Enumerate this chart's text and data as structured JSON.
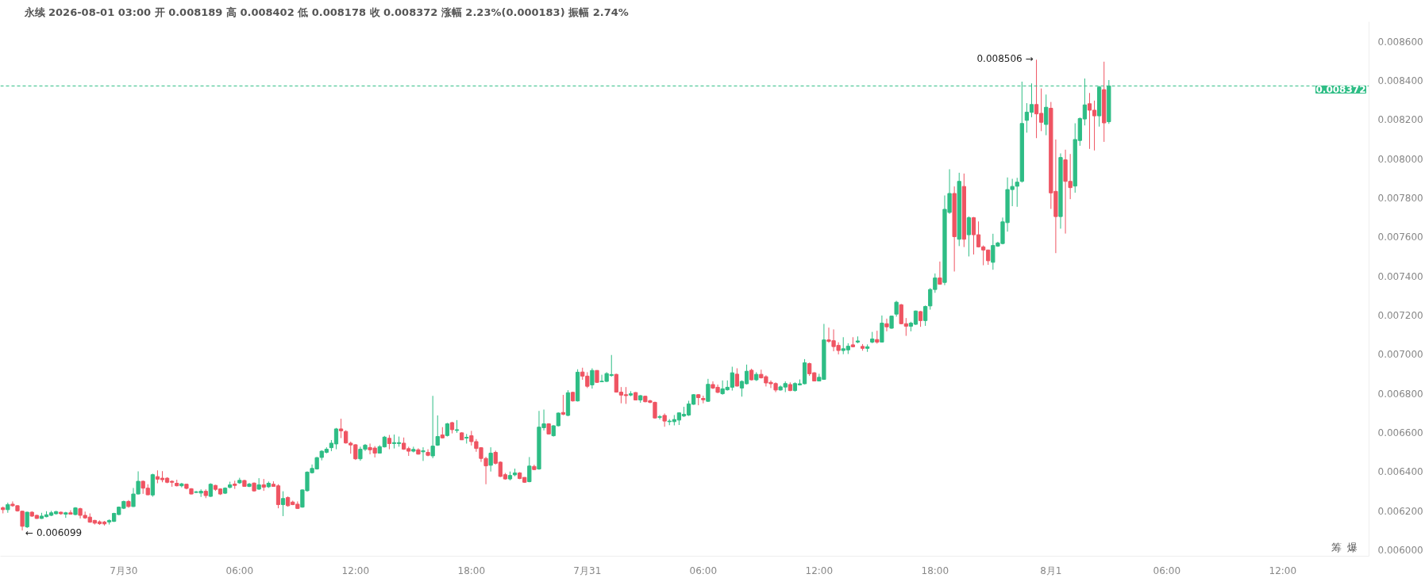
{
  "chart_data": {
    "type": "candlestick",
    "title": "永续 2026-08-01 03:00 开 0.008189 高 0.008402 低 0.008178 收 0.008372 涨幅 2.23%(0.000183) 振幅 2.74%",
    "x": [
      "2026-07-29T17:45",
      "2026-07-29T18:00",
      "2026-07-29T18:15",
      "2026-07-29T18:30",
      "2026-07-29T18:45",
      "2026-07-29T19:00",
      "2026-07-29T19:15",
      "2026-07-29T19:30",
      "2026-07-29T19:45",
      "2026-07-29T20:00",
      "2026-07-29T20:15",
      "2026-07-29T20:30",
      "2026-07-29T20:45",
      "2026-07-29T21:00",
      "2026-07-29T21:15",
      "2026-07-29T21:30",
      "2026-07-29T21:45",
      "2026-07-29T22:00",
      "2026-07-29T22:15",
      "2026-07-29T22:30",
      "2026-07-29T22:45",
      "2026-07-29T23:00",
      "2026-07-29T23:15",
      "2026-07-29T23:30",
      "2026-07-29T23:45",
      "2026-07-30T00:00",
      "2026-07-30T00:15",
      "2026-07-30T00:30",
      "2026-07-30T00:45",
      "2026-07-30T01:00",
      "2026-07-30T01:15",
      "2026-07-30T01:30",
      "2026-07-30T01:45",
      "2026-07-30T02:00",
      "2026-07-30T02:15",
      "2026-07-30T02:30",
      "2026-07-30T02:45",
      "2026-07-30T03:00",
      "2026-07-30T03:15",
      "2026-07-30T03:30",
      "2026-07-30T03:45",
      "2026-07-30T04:00",
      "2026-07-30T04:15",
      "2026-07-30T04:30",
      "2026-07-30T04:45",
      "2026-07-30T05:00",
      "2026-07-30T05:15",
      "2026-07-30T05:30",
      "2026-07-30T05:45",
      "2026-07-30T06:00",
      "2026-07-30T06:15",
      "2026-07-30T06:30",
      "2026-07-30T06:45",
      "2026-07-30T07:00",
      "2026-07-30T07:15",
      "2026-07-30T07:30",
      "2026-07-30T07:45",
      "2026-07-30T08:00",
      "2026-07-30T08:15",
      "2026-07-30T08:30",
      "2026-07-30T08:45",
      "2026-07-30T09:00",
      "2026-07-30T09:15",
      "2026-07-30T09:30",
      "2026-07-30T09:45",
      "2026-07-30T10:00",
      "2026-07-30T10:15",
      "2026-07-30T10:30",
      "2026-07-30T10:45",
      "2026-07-30T11:00",
      "2026-07-30T11:15",
      "2026-07-30T11:30",
      "2026-07-30T11:45",
      "2026-07-30T12:00",
      "2026-07-30T12:15",
      "2026-07-30T12:30",
      "2026-07-30T12:45",
      "2026-07-30T13:00",
      "2026-07-30T13:15",
      "2026-07-30T13:30",
      "2026-07-30T13:45",
      "2026-07-30T14:00",
      "2026-07-30T14:15",
      "2026-07-30T14:30",
      "2026-07-30T14:45",
      "2026-07-30T15:00",
      "2026-07-30T15:15",
      "2026-07-30T15:30",
      "2026-07-30T15:45",
      "2026-07-30T16:00",
      "2026-07-30T16:15",
      "2026-07-30T16:30",
      "2026-07-30T16:45",
      "2026-07-30T17:00",
      "2026-07-30T17:15",
      "2026-07-30T17:30",
      "2026-07-30T17:45",
      "2026-07-30T18:00",
      "2026-07-30T18:15",
      "2026-07-30T18:30",
      "2026-07-30T18:45",
      "2026-07-30T19:00",
      "2026-07-30T19:15",
      "2026-07-30T19:30",
      "2026-07-30T19:45",
      "2026-07-30T20:00",
      "2026-07-30T20:15",
      "2026-07-30T20:30",
      "2026-07-30T20:45",
      "2026-07-30T21:00",
      "2026-07-30T21:15",
      "2026-07-30T21:30",
      "2026-07-30T21:45",
      "2026-07-30T22:00",
      "2026-07-30T22:15",
      "2026-07-30T22:30",
      "2026-07-30T22:45",
      "2026-07-30T23:00",
      "2026-07-30T23:15",
      "2026-07-30T23:30",
      "2026-07-30T23:45",
      "2026-07-31T00:00",
      "2026-07-31T00:15",
      "2026-07-31T00:30",
      "2026-07-31T00:45",
      "2026-07-31T01:00",
      "2026-07-31T01:15",
      "2026-07-31T01:30",
      "2026-07-31T01:45",
      "2026-07-31T02:00",
      "2026-07-31T02:15",
      "2026-07-31T02:30",
      "2026-07-31T02:45",
      "2026-07-31T03:00",
      "2026-07-31T03:15",
      "2026-07-31T03:30",
      "2026-07-31T03:45",
      "2026-07-31T04:00",
      "2026-07-31T04:15",
      "2026-07-31T04:30",
      "2026-07-31T04:45",
      "2026-07-31T05:00",
      "2026-07-31T05:15",
      "2026-07-31T05:30",
      "2026-07-31T05:45",
      "2026-07-31T06:00",
      "2026-07-31T06:15",
      "2026-07-31T06:30",
      "2026-07-31T06:45",
      "2026-07-31T07:00",
      "2026-07-31T07:15",
      "2026-07-31T07:30",
      "2026-07-31T07:45",
      "2026-07-31T08:00",
      "2026-07-31T08:15",
      "2026-07-31T08:30",
      "2026-07-31T08:45",
      "2026-07-31T09:00",
      "2026-07-31T09:15",
      "2026-07-31T09:30",
      "2026-07-31T09:45",
      "2026-07-31T10:00",
      "2026-07-31T10:15",
      "2026-07-31T10:30",
      "2026-07-31T10:45",
      "2026-07-31T11:00",
      "2026-07-31T11:15",
      "2026-07-31T11:30",
      "2026-07-31T11:45",
      "2026-07-31T12:00",
      "2026-07-31T12:15",
      "2026-07-31T12:30",
      "2026-07-31T12:45",
      "2026-07-31T13:00",
      "2026-07-31T13:15",
      "2026-07-31T13:30",
      "2026-07-31T13:45",
      "2026-07-31T14:00",
      "2026-07-31T14:15",
      "2026-07-31T14:30",
      "2026-07-31T14:45",
      "2026-07-31T15:00",
      "2026-07-31T15:15",
      "2026-07-31T15:30",
      "2026-07-31T15:45",
      "2026-07-31T16:00",
      "2026-07-31T16:15",
      "2026-07-31T16:30",
      "2026-07-31T16:45",
      "2026-07-31T17:00",
      "2026-07-31T17:15",
      "2026-07-31T17:30",
      "2026-07-31T17:45",
      "2026-07-31T18:00",
      "2026-07-31T18:15",
      "2026-07-31T18:30",
      "2026-07-31T18:45",
      "2026-07-31T19:00",
      "2026-07-31T19:15",
      "2026-07-31T19:30",
      "2026-07-31T19:45",
      "2026-07-31T20:00",
      "2026-07-31T20:15",
      "2026-07-31T20:30",
      "2026-07-31T20:45",
      "2026-07-31T21:00",
      "2026-07-31T21:15",
      "2026-07-31T21:30",
      "2026-07-31T21:45",
      "2026-07-31T22:00",
      "2026-07-31T22:15",
      "2026-07-31T22:30",
      "2026-07-31T22:45",
      "2026-07-31T23:00",
      "2026-07-31T23:15",
      "2026-07-31T23:30",
      "2026-07-31T23:45",
      "2026-08-01T00:00",
      "2026-08-01T00:15",
      "2026-08-01T00:30",
      "2026-08-01T00:45",
      "2026-08-01T01:00",
      "2026-08-01T01:15",
      "2026-08-01T01:30",
      "2026-08-01T01:45",
      "2026-08-01T02:00",
      "2026-08-01T02:15",
      "2026-08-01T02:30",
      "2026-08-01T02:45",
      "2026-08-01T03:00"
    ],
    "ohlc": [
      [
        0.006215,
        0.006221,
        0.006186,
        0.006205
      ],
      [
        0.006205,
        0.006241,
        0.006189,
        0.006231
      ],
      [
        0.006233,
        0.006247,
        0.00622,
        0.006225
      ],
      [
        0.006225,
        0.006228,
        0.006195,
        0.006199
      ],
      [
        0.006197,
        0.006199,
        0.006099,
        0.00612
      ],
      [
        0.006117,
        0.006194,
        0.006111,
        0.006192
      ],
      [
        0.006192,
        0.006197,
        0.006168,
        0.006172
      ],
      [
        0.006176,
        0.006179,
        0.006158,
        0.00616
      ],
      [
        0.00616,
        0.006189,
        0.006158,
        0.006172
      ],
      [
        0.006169,
        0.006197,
        0.006166,
        0.006179
      ],
      [
        0.006176,
        0.006199,
        0.006172,
        0.006189
      ],
      [
        0.006184,
        0.006199,
        0.00618,
        0.006195
      ],
      [
        0.006192,
        0.006195,
        0.006179,
        0.006184
      ],
      [
        0.006182,
        0.006194,
        0.006163,
        0.006189
      ],
      [
        0.006189,
        0.006202,
        0.00618,
        0.006182
      ],
      [
        0.00618,
        0.006218,
        0.006176,
        0.006214
      ],
      [
        0.00621,
        0.006215,
        0.00616,
        0.006176
      ],
      [
        0.006176,
        0.006195,
        0.006158,
        0.006163
      ],
      [
        0.006167,
        0.006186,
        0.006138,
        0.006141
      ],
      [
        0.00615,
        0.006153,
        0.006129,
        0.006136
      ],
      [
        0.006143,
        0.00615,
        0.006127,
        0.006133
      ],
      [
        0.006142,
        0.006147,
        0.006124,
        0.006132
      ],
      [
        0.006142,
        0.006155,
        0.006129,
        0.00615
      ],
      [
        0.006145,
        0.006189,
        0.006142,
        0.006186
      ],
      [
        0.00618,
        0.006221,
        0.006177,
        0.006218
      ],
      [
        0.006212,
        0.006251,
        0.006208,
        0.006247
      ],
      [
        0.006247,
        0.006254,
        0.006215,
        0.006221
      ],
      [
        0.006221,
        0.006316,
        0.006219,
        0.006285
      ],
      [
        0.006285,
        0.006401,
        0.006283,
        0.00635
      ],
      [
        0.00635,
        0.006354,
        0.006286,
        0.006315
      ],
      [
        0.006315,
        0.006335,
        0.006279,
        0.006281
      ],
      [
        0.00628,
        0.006389,
        0.006271,
        0.006384
      ],
      [
        0.006374,
        0.006406,
        0.00634,
        0.006361
      ],
      [
        0.006366,
        0.006402,
        0.006345,
        0.006358
      ],
      [
        0.006366,
        0.006371,
        0.00634,
        0.006345
      ],
      [
        0.00635,
        0.006355,
        0.006322,
        0.006345
      ],
      [
        0.00634,
        0.006358,
        0.006324,
        0.006327
      ],
      [
        0.006327,
        0.006342,
        0.006319,
        0.006337
      ],
      [
        0.006335,
        0.006337,
        0.006309,
        0.006314
      ],
      [
        0.006312,
        0.006315,
        0.006283,
        0.006285
      ],
      [
        0.006293,
        0.006301,
        0.00629,
        0.006296
      ],
      [
        0.00629,
        0.006309,
        0.00627,
        0.006299
      ],
      [
        0.006299,
        0.006309,
        0.006264,
        0.006277
      ],
      [
        0.006273,
        0.00634,
        0.00627,
        0.006335
      ],
      [
        0.006329,
        0.006332,
        0.006301,
        0.006309
      ],
      [
        0.006311,
        0.006314,
        0.00628,
        0.006285
      ],
      [
        0.006289,
        0.006319,
        0.006285,
        0.006315
      ],
      [
        0.006319,
        0.006348,
        0.006314,
        0.006332
      ],
      [
        0.006336,
        0.006353,
        0.006311,
        0.006329
      ],
      [
        0.006342,
        0.006368,
        0.006337,
        0.006355
      ],
      [
        0.006354,
        0.006358,
        0.006322,
        0.006324
      ],
      [
        0.006324,
        0.006342,
        0.00632,
        0.006336
      ],
      [
        0.006341,
        0.006344,
        0.006298,
        0.006301
      ],
      [
        0.00631,
        0.006366,
        0.006306,
        0.006332
      ],
      [
        0.006332,
        0.006362,
        0.006301,
        0.00632
      ],
      [
        0.006322,
        0.006349,
        0.006316,
        0.00634
      ],
      [
        0.006335,
        0.00635,
        0.006322,
        0.006324
      ],
      [
        0.006327,
        0.006335,
        0.006212,
        0.006231
      ],
      [
        0.006231,
        0.006299,
        0.006172,
        0.006262
      ],
      [
        0.006267,
        0.006273,
        0.00622,
        0.006225
      ],
      [
        0.006244,
        0.006251,
        0.006228,
        0.006231
      ],
      [
        0.006233,
        0.006247,
        0.00621,
        0.006211
      ],
      [
        0.006218,
        0.006309,
        0.006215,
        0.006306
      ],
      [
        0.006302,
        0.006401,
        0.006297,
        0.006397
      ],
      [
        0.006394,
        0.006436,
        0.00639,
        0.006416
      ],
      [
        0.006413,
        0.006475,
        0.00641,
        0.006471
      ],
      [
        0.006472,
        0.006509,
        0.006457,
        0.006504
      ],
      [
        0.006498,
        0.006524,
        0.006493,
        0.006514
      ],
      [
        0.006522,
        0.006561,
        0.006504,
        0.006545
      ],
      [
        0.006541,
        0.006623,
        0.006514,
        0.006618
      ],
      [
        0.006618,
        0.00667,
        0.006571,
        0.006608
      ],
      [
        0.006605,
        0.006611,
        0.006543,
        0.006546
      ],
      [
        0.006545,
        0.006553,
        0.006491,
        0.006536
      ],
      [
        0.006537,
        0.00654,
        0.006459,
        0.006465
      ],
      [
        0.006465,
        0.006527,
        0.006455,
        0.006514
      ],
      [
        0.006514,
        0.006541,
        0.006505,
        0.006535
      ],
      [
        0.006523,
        0.006543,
        0.006488,
        0.006511
      ],
      [
        0.00652,
        0.00653,
        0.006472,
        0.006494
      ],
      [
        0.006494,
        0.006535,
        0.006493,
        0.006527
      ],
      [
        0.006526,
        0.006582,
        0.006523,
        0.006576
      ],
      [
        0.00657,
        0.006587,
        0.006514,
        0.006543
      ],
      [
        0.006543,
        0.006589,
        0.006518,
        0.006548
      ],
      [
        0.006543,
        0.006579,
        0.006527,
        0.006548
      ],
      [
        0.006545,
        0.006574,
        0.006511,
        0.006514
      ],
      [
        0.006517,
        0.006527,
        0.00648,
        0.006504
      ],
      [
        0.006504,
        0.006527,
        0.006498,
        0.006513
      ],
      [
        0.006511,
        0.006519,
        0.006487,
        0.006489
      ],
      [
        0.006501,
        0.006524,
        0.006454,
        0.006506
      ],
      [
        0.006498,
        0.006514,
        0.006478,
        0.006483
      ],
      [
        0.00648,
        0.006787,
        0.006468,
        0.00653
      ],
      [
        0.006535,
        0.006687,
        0.006531,
        0.006579
      ],
      [
        0.006587,
        0.006627,
        0.006569,
        0.006572
      ],
      [
        0.006584,
        0.006649,
        0.006579,
        0.006644
      ],
      [
        0.00665,
        0.006654,
        0.006595,
        0.006614
      ],
      [
        0.00661,
        0.006663,
        0.006598,
        0.006614
      ],
      [
        0.006598,
        0.006601,
        0.006561,
        0.006562
      ],
      [
        0.006571,
        0.006592,
        0.006543,
        0.006575
      ],
      [
        0.006583,
        0.006608,
        0.006533,
        0.006553
      ],
      [
        0.006553,
        0.006566,
        0.006501,
        0.006518
      ],
      [
        0.006522,
        0.006524,
        0.006449,
        0.006467
      ],
      [
        0.006467,
        0.006475,
        0.006335,
        0.006429
      ],
      [
        0.006432,
        0.006524,
        0.0064,
        0.006494
      ],
      [
        0.006498,
        0.006507,
        0.006436,
        0.006442
      ],
      [
        0.006448,
        0.006452,
        0.006372,
        0.006375
      ],
      [
        0.006384,
        0.006393,
        0.006358,
        0.006362
      ],
      [
        0.006362,
        0.0064,
        0.006355,
        0.00638
      ],
      [
        0.006383,
        0.006415,
        0.006376,
        0.006393
      ],
      [
        0.006393,
        0.006397,
        0.006361,
        0.006364
      ],
      [
        0.00637,
        0.006371,
        0.006342,
        0.006345
      ],
      [
        0.006348,
        0.006474,
        0.006345,
        0.006428
      ],
      [
        0.006426,
        0.006435,
        0.006407,
        0.00641
      ],
      [
        0.006413,
        0.00671,
        0.006409,
        0.006627
      ],
      [
        0.006624,
        0.006717,
        0.00661,
        0.006644
      ],
      [
        0.006644,
        0.006647,
        0.006589,
        0.006592
      ],
      [
        0.006583,
        0.006637,
        0.006579,
        0.006634
      ],
      [
        0.006634,
        0.006702,
        0.006631,
        0.006699
      ],
      [
        0.006702,
        0.006792,
        0.006688,
        0.006693
      ],
      [
        0.006687,
        0.006816,
        0.006683,
        0.006803
      ],
      [
        0.006805,
        0.006808,
        0.006758,
        0.006761
      ],
      [
        0.006761,
        0.006923,
        0.006758,
        0.006908
      ],
      [
        0.006909,
        0.006931,
        0.006869,
        0.006888
      ],
      [
        0.006888,
        0.006908,
        0.006827,
        0.006836
      ],
      [
        0.006843,
        0.006928,
        0.006824,
        0.006917
      ],
      [
        0.006917,
        0.006918,
        0.006853,
        0.006856
      ],
      [
        0.006859,
        0.006895,
        0.006857,
        0.006862
      ],
      [
        0.006861,
        0.006908,
        0.006858,
        0.006901
      ],
      [
        0.006891,
        0.006996,
        0.006885,
        0.006896
      ],
      [
        0.006897,
        0.0069,
        0.006804,
        0.006806
      ],
      [
        0.006806,
        0.006832,
        0.006749,
        0.006791
      ],
      [
        0.006793,
        0.006832,
        0.006746,
        0.006788
      ],
      [
        0.006791,
        0.006811,
        0.006785,
        0.006798
      ],
      [
        0.006804,
        0.006806,
        0.006765,
        0.006766
      ],
      [
        0.006766,
        0.006791,
        0.006752,
        0.006788
      ],
      [
        0.006785,
        0.006788,
        0.006754,
        0.006757
      ],
      [
        0.006762,
        0.006767,
        0.006749,
        0.006754
      ],
      [
        0.006754,
        0.006757,
        0.006671,
        0.006674
      ],
      [
        0.006677,
        0.006689,
        0.006666,
        0.006681
      ],
      [
        0.006687,
        0.006697,
        0.006629,
        0.006658
      ],
      [
        0.006655,
        0.006668,
        0.006637,
        0.006658
      ],
      [
        0.006655,
        0.006689,
        0.006636,
        0.006666
      ],
      [
        0.006663,
        0.006702,
        0.006638,
        0.0067
      ],
      [
        0.006684,
        0.006731,
        0.006679,
        0.006693
      ],
      [
        0.006689,
        0.006762,
        0.006684,
        0.006746
      ],
      [
        0.006744,
        0.006796,
        0.006741,
        0.006793
      ],
      [
        0.006793,
        0.006796,
        0.006739,
        0.006778
      ],
      [
        0.006774,
        0.006788,
        0.006749,
        0.006767
      ],
      [
        0.006759,
        0.006874,
        0.006757,
        0.006846
      ],
      [
        0.006845,
        0.006861,
        0.006822,
        0.006827
      ],
      [
        0.006831,
        0.006845,
        0.006801,
        0.006805
      ],
      [
        0.006798,
        0.006866,
        0.006793,
        0.006823
      ],
      [
        0.006818,
        0.006866,
        0.006814,
        0.006831
      ],
      [
        0.006831,
        0.006936,
        0.006814,
        0.006905
      ],
      [
        0.006898,
        0.006928,
        0.006835,
        0.006837
      ],
      [
        0.006827,
        0.006866,
        0.006783,
        0.006861
      ],
      [
        0.006849,
        0.006947,
        0.006845,
        0.006913
      ],
      [
        0.006918,
        0.006926,
        0.006866,
        0.006869
      ],
      [
        0.006869,
        0.006908,
        0.006863,
        0.006897
      ],
      [
        0.006897,
        0.006921,
        0.006876,
        0.006879
      ],
      [
        0.006885,
        0.006892,
        0.006835,
        0.006853
      ],
      [
        0.006856,
        0.006866,
        0.006827,
        0.006849
      ],
      [
        0.00685,
        0.006856,
        0.006806,
        0.006817
      ],
      [
        0.006817,
        0.00684,
        0.006814,
        0.006833
      ],
      [
        0.006832,
        0.006861,
        0.006806,
        0.00685
      ],
      [
        0.006845,
        0.006856,
        0.006811,
        0.006814
      ],
      [
        0.006814,
        0.006856,
        0.006809,
        0.00685
      ],
      [
        0.006843,
        0.006871,
        0.00684,
        0.006849
      ],
      [
        0.006849,
        0.006975,
        0.006846,
        0.006956
      ],
      [
        0.006952,
        0.006957,
        0.006889,
        0.0069
      ],
      [
        0.006905,
        0.006908,
        0.006861,
        0.006863
      ],
      [
        0.006863,
        0.0069,
        0.006861,
        0.006882
      ],
      [
        0.006871,
        0.007155,
        0.006869,
        0.007073
      ],
      [
        0.007073,
        0.007136,
        0.007058,
        0.007066
      ],
      [
        0.007069,
        0.007127,
        0.007015,
        0.007039
      ],
      [
        0.007045,
        0.007061,
        0.006999,
        0.007019
      ],
      [
        0.007019,
        0.007087,
        0.007,
        0.007028
      ],
      [
        0.007022,
        0.007056,
        0.007001,
        0.007041
      ],
      [
        0.007048,
        0.007087,
        0.007035,
        0.007038
      ],
      [
        0.007062,
        0.007091,
        0.007056,
        0.007068
      ],
      [
        0.00704,
        0.007052,
        0.007018,
        0.00703
      ],
      [
        0.00703,
        0.00705,
        0.007012,
        0.007038
      ],
      [
        0.007062,
        0.007114,
        0.007056,
        0.007078
      ],
      [
        0.007075,
        0.00712,
        0.007054,
        0.007062
      ],
      [
        0.007062,
        0.007198,
        0.00706,
        0.007159
      ],
      [
        0.007156,
        0.007182,
        0.007117,
        0.00714
      ],
      [
        0.007133,
        0.007197,
        0.00713,
        0.007195
      ],
      [
        0.007205,
        0.007273,
        0.007192,
        0.007266
      ],
      [
        0.007253,
        0.007257,
        0.007153,
        0.007156
      ],
      [
        0.007156,
        0.007185,
        0.007094,
        0.007143
      ],
      [
        0.007143,
        0.007166,
        0.007117,
        0.007159
      ],
      [
        0.007153,
        0.007223,
        0.00715,
        0.007221
      ],
      [
        0.007218,
        0.007221,
        0.00714,
        0.007172
      ],
      [
        0.007172,
        0.007249,
        0.007145,
        0.007244
      ],
      [
        0.007247,
        0.007338,
        0.007228,
        0.007331
      ],
      [
        0.007331,
        0.007413,
        0.007314,
        0.00739
      ],
      [
        0.00739,
        0.007474,
        0.007356,
        0.007358
      ],
      [
        0.007367,
        0.007812,
        0.007353,
        0.007741
      ],
      [
        0.007725,
        0.007946,
        0.007718,
        0.007822
      ],
      [
        0.007822,
        0.007858,
        0.007423,
        0.007601
      ],
      [
        0.007588,
        0.007928,
        0.007553,
        0.007884
      ],
      [
        0.007858,
        0.007924,
        0.007548,
        0.007588
      ],
      [
        0.007611,
        0.007705,
        0.0075,
        0.007698
      ],
      [
        0.007698,
        0.007702,
        0.00751,
        0.007611
      ],
      [
        0.007611,
        0.007679,
        0.007546,
        0.007549
      ],
      [
        0.007549,
        0.007556,
        0.007455,
        0.007533
      ],
      [
        0.007533,
        0.007535,
        0.007457,
        0.007478
      ],
      [
        0.00747,
        0.007616,
        0.007432,
        0.007556
      ],
      [
        0.007553,
        0.007575,
        0.007549,
        0.007569
      ],
      [
        0.007566,
        0.007699,
        0.007562,
        0.007677
      ],
      [
        0.007673,
        0.007904,
        0.007627,
        0.007842
      ],
      [
        0.007842,
        0.007897,
        0.007757,
        0.007858
      ],
      [
        0.007859,
        0.007902,
        0.007754,
        0.00788
      ],
      [
        0.007884,
        0.008394,
        0.007878,
        0.00818
      ],
      [
        0.008196,
        0.008284,
        0.008133,
        0.008238
      ],
      [
        0.008237,
        0.008385,
        0.008212,
        0.008277
      ],
      [
        0.008277,
        0.008506,
        0.008105,
        0.008229
      ],
      [
        0.008232,
        0.008359,
        0.008141,
        0.008186
      ],
      [
        0.008175,
        0.008328,
        0.00812,
        0.008263
      ],
      [
        0.008258,
        0.00829,
        0.007743,
        0.007825
      ],
      [
        0.007833,
        0.008098,
        0.007517,
        0.007704
      ],
      [
        0.007704,
        0.008027,
        0.007642,
        0.008006
      ],
      [
        0.007994,
        0.008046,
        0.007617,
        0.007884
      ],
      [
        0.007884,
        0.008024,
        0.007793,
        0.007852
      ],
      [
        0.00786,
        0.008181,
        0.007826,
        0.008098
      ],
      [
        0.008093,
        0.008211,
        0.008066,
        0.008205
      ],
      [
        0.008203,
        0.00841,
        0.00817,
        0.008275
      ],
      [
        0.008281,
        0.008336,
        0.00805,
        0.008248
      ],
      [
        0.008248,
        0.008297,
        0.008042,
        0.008219
      ],
      [
        0.008219,
        0.008372,
        0.008164,
        0.008366
      ],
      [
        0.008353,
        0.008496,
        0.008086,
        0.008183
      ],
      [
        0.008189,
        0.008402,
        0.008178,
        0.008372
      ]
    ],
    "xlim": [
      "2026-07-29T17:37",
      "2026-08-01T16:28"
    ],
    "xticks": [
      {
        "value": "2026-07-30T00:00",
        "label": "7月30"
      },
      {
        "value": "2026-07-30T06:00",
        "label": "06:00"
      },
      {
        "value": "2026-07-30T12:00",
        "label": "12:00"
      },
      {
        "value": "2026-07-30T18:00",
        "label": "18:00"
      },
      {
        "value": "2026-07-31T00:00",
        "label": "7月31"
      },
      {
        "value": "2026-07-31T06:00",
        "label": "06:00"
      },
      {
        "value": "2026-07-31T12:00",
        "label": "12:00"
      },
      {
        "value": "2026-07-31T18:00",
        "label": "18:00"
      },
      {
        "value": "2026-08-01T00:00",
        "label": "8月1"
      },
      {
        "value": "2026-08-01T06:00",
        "label": "06:00"
      },
      {
        "value": "2026-08-01T12:00",
        "label": "12:00"
      }
    ],
    "ylim": [
      0.005967,
      0.0087
    ],
    "yticks": [
      {
        "value": 0.006,
        "label": "0.006000"
      },
      {
        "value": 0.0062,
        "label": "0.006200"
      },
      {
        "value": 0.0064,
        "label": "0.006400"
      },
      {
        "value": 0.0066,
        "label": "0.006600"
      },
      {
        "value": 0.0068,
        "label": "0.006800"
      },
      {
        "value": 0.007,
        "label": "0.007000"
      },
      {
        "value": 0.0072,
        "label": "0.007200"
      },
      {
        "value": 0.0074,
        "label": "0.007400"
      },
      {
        "value": 0.0076,
        "label": "0.007600"
      },
      {
        "value": 0.0078,
        "label": "0.007800"
      },
      {
        "value": 0.008,
        "label": "0.008000"
      },
      {
        "value": 0.0082,
        "label": "0.008200"
      },
      {
        "value": 0.0084,
        "label": "0.008400"
      },
      {
        "value": 0.0086,
        "label": "0.008600"
      }
    ],
    "ref_lines": [
      {
        "axis": "y",
        "value": 0.008372,
        "label": "0.008372",
        "color": "#2ebd85",
        "line_style": "dashed"
      }
    ],
    "annotations": [
      {
        "text": "0.008506 →",
        "x": "2026-07-31T23:15",
        "y": 0.008506
      },
      {
        "text": "← 0.006099",
        "x": "2026-07-29T18:45",
        "y": 0.006099
      },
      "筹",
      "爆"
    ],
    "grid": false
  }
}
